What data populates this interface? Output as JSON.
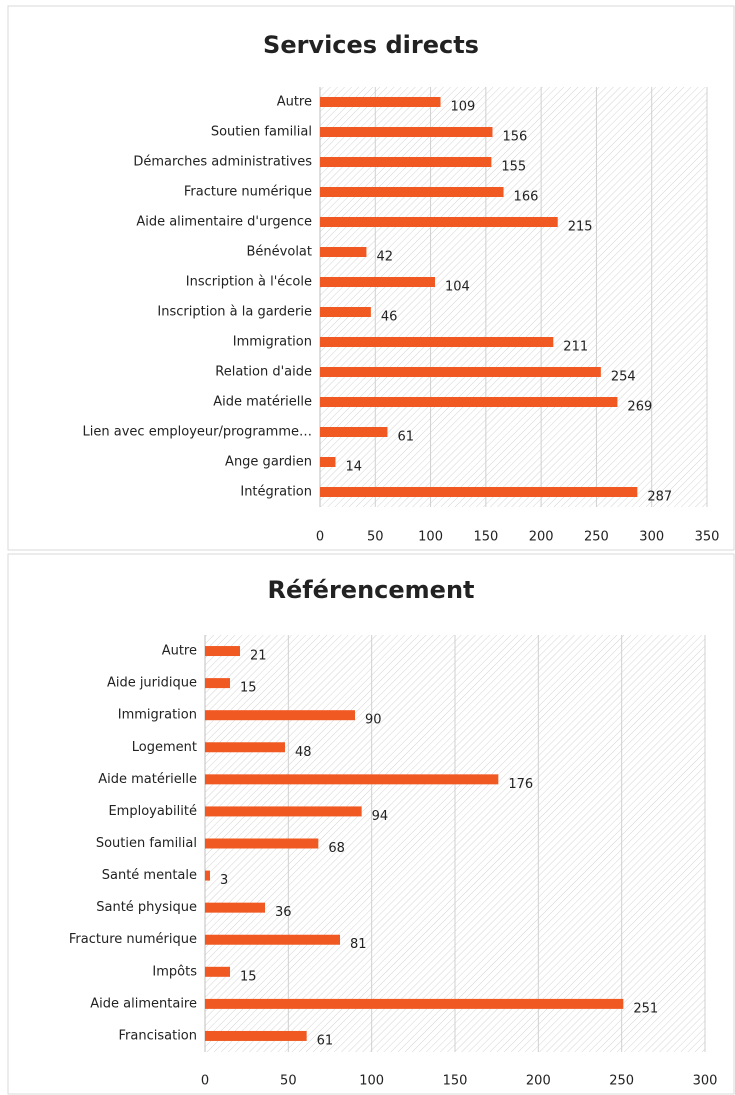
{
  "chart_data": [
    {
      "type": "bar",
      "orientation": "horizontal",
      "title": "Services directs",
      "categories": [
        "Autre",
        "Soutien familial",
        "Démarches administratives",
        "Fracture numérique",
        "Aide alimentaire d'urgence",
        "Bénévolat",
        "Inscription à l'école",
        "Inscription à la garderie",
        "Immigration",
        "Relation d'aide",
        "Aide matérielle",
        "Lien avec employeur/programme…",
        "Ange gardien",
        "Intégration"
      ],
      "values": [
        109,
        156,
        155,
        166,
        215,
        42,
        104,
        46,
        211,
        254,
        269,
        61,
        14,
        287
      ],
      "color": "#f05a22",
      "xlim": [
        0,
        350
      ],
      "xticks": [
        0,
        50,
        100,
        150,
        200,
        250,
        300,
        350
      ],
      "grid": true
    },
    {
      "type": "bar",
      "orientation": "horizontal",
      "title": "Référencement",
      "categories": [
        "Autre",
        "Aide juridique",
        "Immigration",
        "Logement",
        "Aide matérielle",
        "Employabilité",
        "Soutien familial",
        "Santé mentale",
        "Santé physique",
        "Fracture numérique",
        "Impôts",
        "Aide alimentaire",
        "Francisation"
      ],
      "values": [
        21,
        15,
        90,
        48,
        176,
        94,
        68,
        3,
        36,
        81,
        15,
        251,
        61
      ],
      "color": "#f05a22",
      "xlim": [
        0,
        300
      ],
      "xticks": [
        0,
        50,
        100,
        150,
        200,
        250,
        300
      ],
      "grid": true
    }
  ]
}
